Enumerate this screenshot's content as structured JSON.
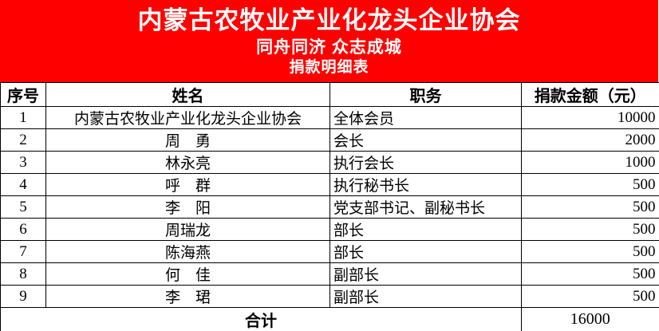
{
  "banner": {
    "title": "内蒙古农牧业产业化龙头企业协会",
    "subtitle": "同舟同济 众志成城",
    "table_title": "捐款明细表"
  },
  "colors": {
    "banner_bg": "#ff0000",
    "banner_text": "#ffffff",
    "table_border": "#000000"
  },
  "table": {
    "columns": [
      "序号",
      "姓名",
      "职务",
      "捐款金额（元）"
    ],
    "rows": [
      {
        "no": "1",
        "name": "内蒙古农牧业产业化龙头企业协会",
        "position": "全体会员",
        "amount": "10000"
      },
      {
        "no": "2",
        "name": "周　勇",
        "position": "会长",
        "amount": "2000"
      },
      {
        "no": "3",
        "name": "林永亮",
        "position": "执行会长",
        "amount": "1000"
      },
      {
        "no": "4",
        "name": "呼　群",
        "position": "执行秘书长",
        "amount": "500"
      },
      {
        "no": "5",
        "name": "李　阳",
        "position": "党支部书记、副秘书长",
        "amount": "500"
      },
      {
        "no": "6",
        "name": "周瑞龙",
        "position": "部长",
        "amount": "500"
      },
      {
        "no": "7",
        "name": "陈海燕",
        "position": "部长",
        "amount": "500"
      },
      {
        "no": "8",
        "name": "何　佳",
        "position": "副部长",
        "amount": "500"
      },
      {
        "no": "9",
        "name": "李　珺",
        "position": "副部长",
        "amount": "500"
      }
    ],
    "total": {
      "label": "合计",
      "amount": "16000"
    }
  }
}
